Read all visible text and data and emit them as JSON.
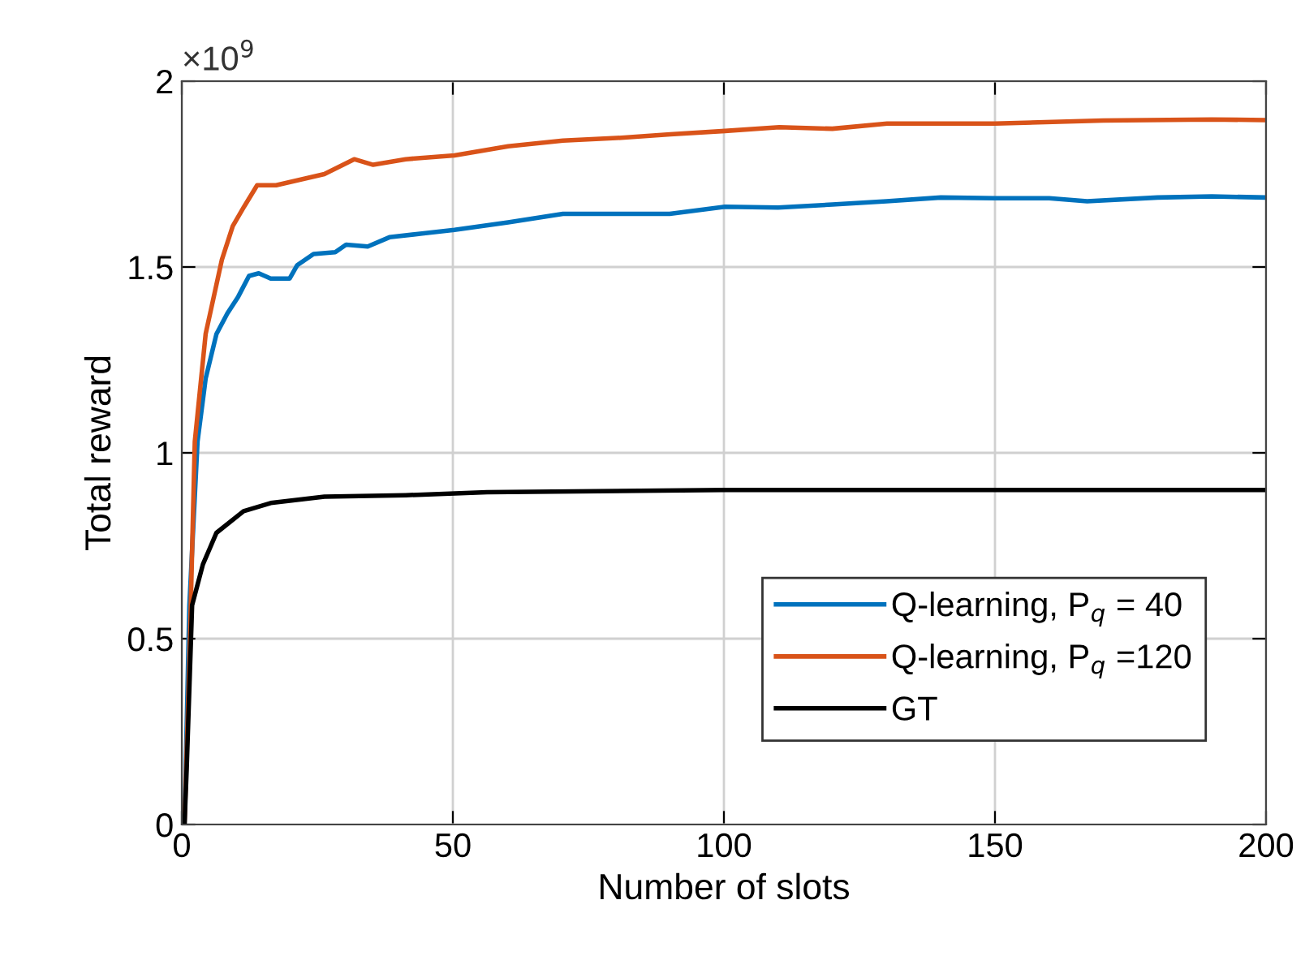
{
  "chart_data": {
    "type": "line",
    "xlabel": "Number of slots",
    "ylabel": "Total reward",
    "xlim": [
      0,
      200
    ],
    "ylim": [
      0,
      2
    ],
    "xticks": [
      0,
      50,
      100,
      150,
      200
    ],
    "yticks": [
      0,
      0.5,
      1,
      1.5,
      2
    ],
    "grid": true,
    "legend": "lower right",
    "line_style": "solid",
    "marker": "none",
    "annotations": [
      "×10$^{9}$"
    ],
    "series": [
      {
        "name": "Q-learning, P$_{q}$ = 40",
        "color": "#0072bd",
        "x": [
          0.5,
          1.4,
          2.9,
          4.4,
          6.4,
          8.4,
          10.4,
          12.4,
          14.2,
          16.4,
          19.9,
          21.3,
          24.3,
          28.3,
          30.3,
          34.3,
          38.3,
          44.3,
          50.3,
          60.2,
          70.3,
          90,
          100.2,
          110,
          120,
          130,
          140,
          150,
          160,
          167,
          180,
          190,
          200
        ],
        "values": [
          0,
          0.59,
          1.03,
          1.2,
          1.32,
          1.375,
          1.42,
          1.476,
          1.483,
          1.469,
          1.469,
          1.505,
          1.535,
          1.54,
          1.56,
          1.555,
          1.58,
          1.59,
          1.6,
          1.62,
          1.643,
          1.643,
          1.662,
          1.66,
          1.668,
          1.677,
          1.687,
          1.685,
          1.685,
          1.677,
          1.687,
          1.69,
          1.687
        ]
      },
      {
        "name": "Q-learning, P$_{q}$ =120",
        "color": "#d95319",
        "x": [
          0.5,
          1.4,
          2.4,
          4.4,
          7.4,
          9.4,
          11.4,
          13.9,
          17.4,
          23.4,
          26.3,
          31.8,
          35.3,
          41.3,
          50.3,
          60.2,
          70.3,
          80.2,
          90.1,
          100.2,
          110.2,
          120,
          130.1,
          150,
          170,
          190,
          200
        ],
        "values": [
          0,
          0.44,
          1.03,
          1.32,
          1.52,
          1.61,
          1.66,
          1.72,
          1.72,
          1.74,
          1.75,
          1.79,
          1.775,
          1.79,
          1.8,
          1.825,
          1.84,
          1.847,
          1.857,
          1.866,
          1.876,
          1.872,
          1.886,
          1.886,
          1.894,
          1.897,
          1.895
        ]
      },
      {
        "name": "GT",
        "color": "#000000",
        "x": [
          0.5,
          0.9,
          1.9,
          3.9,
          6.4,
          11.4,
          16.4,
          26.3,
          41.3,
          56.3,
          100,
          150,
          200
        ],
        "values": [
          0,
          0.15,
          0.59,
          0.7,
          0.785,
          0.843,
          0.865,
          0.882,
          0.886,
          0.894,
          0.9,
          0.9,
          0.9
        ]
      }
    ]
  }
}
